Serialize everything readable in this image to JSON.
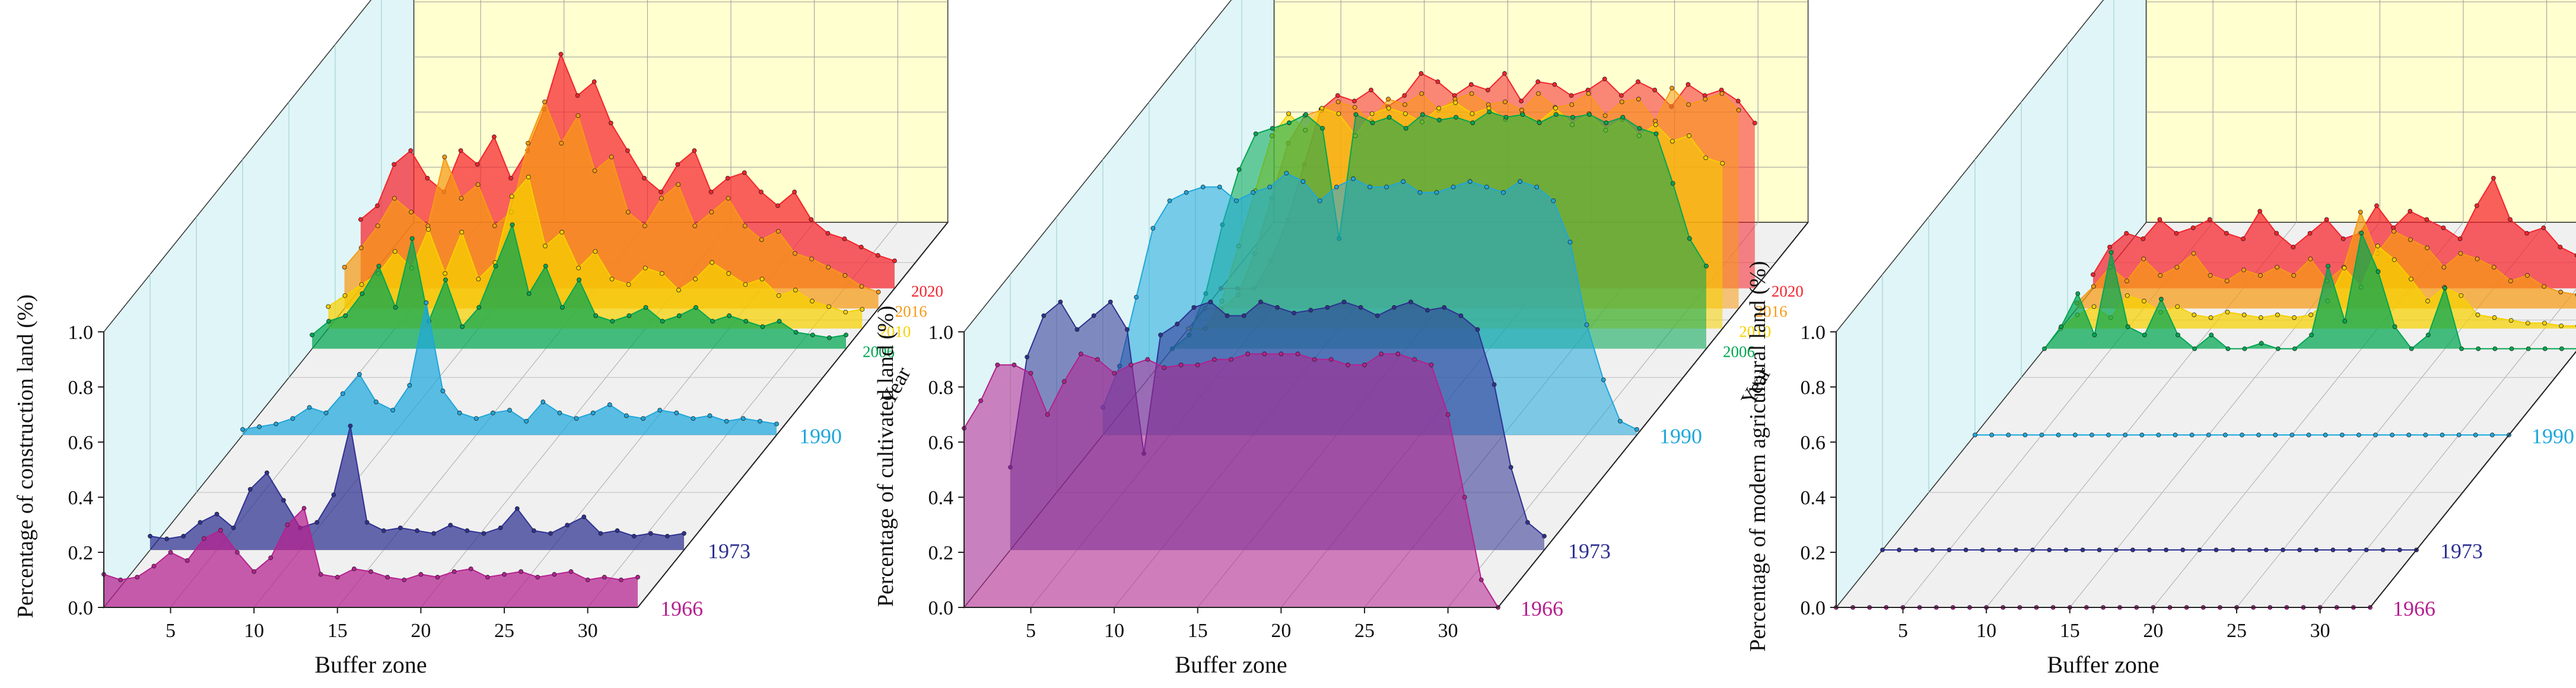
{
  "colors": {
    "1966": "#b5208f",
    "1973": "#2e3192",
    "1990": "#1ea7dc",
    "2006": "#00a651",
    "2010": "#f7d100",
    "2016": "#f79a14",
    "2020": "#f5232b",
    "back_wall": "#ffffd0",
    "side_wall": "#e0f5f7",
    "floor": "#f0f0f0"
  },
  "chart_data": [
    {
      "type": "area",
      "ylabel": "Percentage of construction land (%)",
      "xlabel": "Buffer zone",
      "zlabel": "Year",
      "ylim": [
        0,
        1.0
      ],
      "yticks": [
        "0.0",
        "0.2",
        "0.4",
        "0.6",
        "0.8",
        "1.0"
      ],
      "xticks": [
        "5",
        "10",
        "15",
        "20",
        "25",
        "30"
      ],
      "x": [
        1,
        2,
        3,
        4,
        5,
        6,
        7,
        8,
        9,
        10,
        11,
        12,
        13,
        14,
        15,
        16,
        17,
        18,
        19,
        20,
        21,
        22,
        23,
        24,
        25,
        26,
        27,
        28,
        29,
        30,
        31,
        32,
        33
      ],
      "series": [
        {
          "name": "1966",
          "values": [
            0.12,
            0.1,
            0.11,
            0.15,
            0.2,
            0.17,
            0.25,
            0.28,
            0.2,
            0.13,
            0.18,
            0.3,
            0.36,
            0.12,
            0.11,
            0.14,
            0.13,
            0.11,
            0.1,
            0.12,
            0.11,
            0.13,
            0.14,
            0.11,
            0.12,
            0.13,
            0.11,
            0.12,
            0.13,
            0.1,
            0.11,
            0.1,
            0.11
          ]
        },
        {
          "name": "1973",
          "values": [
            0.05,
            0.04,
            0.05,
            0.1,
            0.13,
            0.08,
            0.22,
            0.28,
            0.18,
            0.08,
            0.1,
            0.2,
            0.45,
            0.1,
            0.07,
            0.08,
            0.07,
            0.06,
            0.09,
            0.07,
            0.06,
            0.08,
            0.15,
            0.07,
            0.06,
            0.09,
            0.12,
            0.06,
            0.07,
            0.05,
            0.06,
            0.05,
            0.06
          ]
        },
        {
          "name": "1990",
          "values": [
            0.02,
            0.03,
            0.04,
            0.06,
            0.1,
            0.08,
            0.15,
            0.22,
            0.12,
            0.09,
            0.18,
            0.48,
            0.16,
            0.08,
            0.06,
            0.08,
            0.09,
            0.05,
            0.12,
            0.08,
            0.06,
            0.08,
            0.11,
            0.07,
            0.06,
            0.09,
            0.08,
            0.06,
            0.07,
            0.05,
            0.06,
            0.05,
            0.04
          ]
        },
        {
          "name": "2006",
          "values": [
            0.05,
            0.1,
            0.12,
            0.2,
            0.3,
            0.15,
            0.4,
            0.1,
            0.25,
            0.08,
            0.15,
            0.3,
            0.45,
            0.2,
            0.3,
            0.15,
            0.25,
            0.12,
            0.1,
            0.12,
            0.15,
            0.1,
            0.12,
            0.15,
            0.1,
            0.12,
            0.1,
            0.08,
            0.1,
            0.06,
            0.05,
            0.04,
            0.05
          ]
        },
        {
          "name": "2010",
          "values": [
            0.08,
            0.12,
            0.16,
            0.2,
            0.28,
            0.22,
            0.36,
            0.2,
            0.35,
            0.18,
            0.24,
            0.48,
            0.55,
            0.3,
            0.35,
            0.22,
            0.28,
            0.18,
            0.16,
            0.22,
            0.2,
            0.14,
            0.18,
            0.24,
            0.2,
            0.16,
            0.18,
            0.12,
            0.14,
            0.1,
            0.08,
            0.06,
            0.07
          ]
        },
        {
          "name": "2016",
          "values": [
            0.15,
            0.22,
            0.3,
            0.4,
            0.35,
            0.3,
            0.55,
            0.4,
            0.45,
            0.3,
            0.35,
            0.6,
            0.75,
            0.6,
            0.7,
            0.5,
            0.55,
            0.35,
            0.3,
            0.4,
            0.45,
            0.3,
            0.35,
            0.4,
            0.3,
            0.25,
            0.28,
            0.2,
            0.18,
            0.15,
            0.12,
            0.08,
            0.06
          ]
        },
        {
          "name": "2020",
          "values": [
            0.25,
            0.3,
            0.45,
            0.5,
            0.4,
            0.35,
            0.5,
            0.45,
            0.55,
            0.4,
            0.5,
            0.65,
            0.85,
            0.7,
            0.75,
            0.6,
            0.5,
            0.4,
            0.35,
            0.45,
            0.5,
            0.35,
            0.4,
            0.42,
            0.35,
            0.3,
            0.35,
            0.25,
            0.2,
            0.18,
            0.15,
            0.12,
            0.1
          ]
        }
      ]
    },
    {
      "type": "area",
      "ylabel": "Percentage of cultivated land (%)",
      "xlabel": "Buffer zone",
      "zlabel": "Year",
      "ylim": [
        0,
        1.0
      ],
      "yticks": [
        "0.0",
        "0.2",
        "0.4",
        "0.6",
        "0.8",
        "1.0"
      ],
      "xticks": [
        "5",
        "10",
        "15",
        "20",
        "25",
        "30"
      ],
      "x": [
        1,
        2,
        3,
        4,
        5,
        6,
        7,
        8,
        9,
        10,
        11,
        12,
        13,
        14,
        15,
        16,
        17,
        18,
        19,
        20,
        21,
        22,
        23,
        24,
        25,
        26,
        27,
        28,
        29,
        30,
        31,
        32,
        33
      ],
      "series": [
        {
          "name": "1966",
          "values": [
            0.65,
            0.75,
            0.88,
            0.88,
            0.85,
            0.7,
            0.82,
            0.92,
            0.9,
            0.85,
            0.88,
            0.9,
            0.87,
            0.88,
            0.88,
            0.9,
            0.9,
            0.92,
            0.92,
            0.92,
            0.92,
            0.9,
            0.9,
            0.88,
            0.88,
            0.92,
            0.92,
            0.9,
            0.88,
            0.7,
            0.4,
            0.1,
            0.0
          ]
        },
        {
          "name": "1973",
          "values": [
            0.3,
            0.7,
            0.85,
            0.9,
            0.8,
            0.85,
            0.9,
            0.8,
            0.35,
            0.78,
            0.82,
            0.88,
            0.9,
            0.85,
            0.85,
            0.9,
            0.88,
            0.86,
            0.87,
            0.88,
            0.9,
            0.88,
            0.85,
            0.88,
            0.9,
            0.87,
            0.88,
            0.85,
            0.8,
            0.6,
            0.3,
            0.1,
            0.05
          ]
        },
        {
          "name": "1990",
          "values": [
            0.1,
            0.25,
            0.5,
            0.75,
            0.85,
            0.88,
            0.9,
            0.9,
            0.85,
            0.88,
            0.9,
            0.95,
            0.92,
            0.85,
            0.9,
            0.93,
            0.9,
            0.9,
            0.92,
            0.88,
            0.88,
            0.9,
            0.92,
            0.9,
            0.88,
            0.92,
            0.9,
            0.85,
            0.7,
            0.4,
            0.2,
            0.05,
            0.02
          ]
        },
        {
          "name": "2006",
          "values": [
            0.0,
            0.05,
            0.2,
            0.45,
            0.65,
            0.78,
            0.8,
            0.82,
            0.85,
            0.8,
            0.4,
            0.85,
            0.82,
            0.84,
            0.8,
            0.85,
            0.83,
            0.84,
            0.82,
            0.86,
            0.84,
            0.85,
            0.82,
            0.85,
            0.84,
            0.85,
            0.82,
            0.84,
            0.8,
            0.78,
            0.6,
            0.4,
            0.3
          ]
        },
        {
          "name": "2010",
          "values": [
            0.0,
            0.0,
            0.1,
            0.3,
            0.5,
            0.7,
            0.78,
            0.72,
            0.8,
            0.78,
            0.7,
            0.78,
            0.8,
            0.78,
            0.75,
            0.8,
            0.82,
            0.78,
            0.8,
            0.76,
            0.78,
            0.75,
            0.8,
            0.74,
            0.78,
            0.72,
            0.76,
            0.7,
            0.74,
            0.68,
            0.7,
            0.62,
            0.6
          ]
        },
        {
          "name": "2016",
          "values": [
            0.0,
            0.0,
            0.05,
            0.2,
            0.4,
            0.6,
            0.7,
            0.72,
            0.75,
            0.73,
            0.68,
            0.76,
            0.74,
            0.78,
            0.72,
            0.76,
            0.78,
            0.74,
            0.75,
            0.72,
            0.78,
            0.73,
            0.74,
            0.78,
            0.7,
            0.75,
            0.76,
            0.68,
            0.8,
            0.74,
            0.76,
            0.78,
            0.72
          ]
        },
        {
          "name": "2020",
          "values": [
            0.0,
            0.0,
            0.0,
            0.1,
            0.25,
            0.45,
            0.65,
            0.7,
            0.68,
            0.72,
            0.66,
            0.7,
            0.78,
            0.75,
            0.7,
            0.74,
            0.72,
            0.78,
            0.68,
            0.75,
            0.74,
            0.7,
            0.72,
            0.76,
            0.7,
            0.75,
            0.72,
            0.66,
            0.74,
            0.7,
            0.72,
            0.68,
            0.6
          ]
        }
      ]
    },
    {
      "type": "area",
      "ylabel": "Percentage of modern agricultural land (%)",
      "xlabel": "Buffer zone",
      "zlabel": "Year",
      "ylim": [
        0,
        1.0
      ],
      "yticks": [
        "0.0",
        "0.2",
        "0.4",
        "0.6",
        "0.8",
        "1.0"
      ],
      "xticks": [
        "5",
        "10",
        "15",
        "20",
        "25",
        "30"
      ],
      "x": [
        1,
        2,
        3,
        4,
        5,
        6,
        7,
        8,
        9,
        10,
        11,
        12,
        13,
        14,
        15,
        16,
        17,
        18,
        19,
        20,
        21,
        22,
        23,
        24,
        25,
        26,
        27,
        28,
        29,
        30,
        31,
        32,
        33
      ],
      "series": [
        {
          "name": "1966",
          "values": [
            0,
            0,
            0,
            0,
            0,
            0,
            0,
            0,
            0,
            0,
            0,
            0,
            0,
            0,
            0,
            0,
            0,
            0,
            0,
            0,
            0,
            0,
            0,
            0,
            0,
            0,
            0,
            0,
            0,
            0,
            0,
            0,
            0
          ]
        },
        {
          "name": "1973",
          "values": [
            0,
            0,
            0,
            0,
            0,
            0,
            0,
            0,
            0,
            0,
            0,
            0,
            0,
            0,
            0,
            0,
            0,
            0,
            0,
            0,
            0,
            0,
            0,
            0,
            0,
            0,
            0,
            0,
            0,
            0,
            0,
            0,
            0
          ]
        },
        {
          "name": "1990",
          "values": [
            0,
            0,
            0,
            0,
            0,
            0,
            0,
            0,
            0,
            0,
            0,
            0,
            0,
            0,
            0,
            0,
            0,
            0,
            0,
            0,
            0,
            0,
            0,
            0,
            0,
            0,
            0,
            0,
            0,
            0,
            0,
            0,
            0
          ]
        },
        {
          "name": "2006",
          "values": [
            0.0,
            0.08,
            0.2,
            0.05,
            0.35,
            0.08,
            0.05,
            0.18,
            0.05,
            0.0,
            0.05,
            0.0,
            0.0,
            0.02,
            0.0,
            0.0,
            0.05,
            0.3,
            0.1,
            0.42,
            0.28,
            0.08,
            0.0,
            0.05,
            0.22,
            0.0,
            0.0,
            0.0,
            0.0,
            0.0,
            0.0,
            0.0,
            0.0
          ]
        },
        {
          "name": "2010",
          "values": [
            0.0,
            0.05,
            0.08,
            0.04,
            0.12,
            0.1,
            0.06,
            0.08,
            0.05,
            0.04,
            0.06,
            0.05,
            0.04,
            0.05,
            0.04,
            0.05,
            0.1,
            0.22,
            0.15,
            0.3,
            0.25,
            0.18,
            0.1,
            0.15,
            0.12,
            0.05,
            0.04,
            0.03,
            0.02,
            0.02,
            0.01,
            0.01,
            0.0
          ]
        },
        {
          "name": "2016",
          "values": [
            0.02,
            0.08,
            0.15,
            0.1,
            0.18,
            0.12,
            0.15,
            0.2,
            0.12,
            0.1,
            0.14,
            0.12,
            0.15,
            0.12,
            0.18,
            0.1,
            0.15,
            0.35,
            0.2,
            0.28,
            0.25,
            0.22,
            0.15,
            0.2,
            0.18,
            0.15,
            0.1,
            0.12,
            0.08,
            0.06,
            0.05,
            0.04,
            0.03
          ]
        },
        {
          "name": "2020",
          "values": [
            0.05,
            0.15,
            0.2,
            0.18,
            0.25,
            0.2,
            0.22,
            0.25,
            0.2,
            0.18,
            0.28,
            0.2,
            0.15,
            0.2,
            0.25,
            0.18,
            0.2,
            0.3,
            0.22,
            0.28,
            0.25,
            0.22,
            0.18,
            0.3,
            0.4,
            0.25,
            0.2,
            0.22,
            0.15,
            0.12,
            0.1,
            0.15,
            0.08
          ]
        }
      ]
    }
  ]
}
